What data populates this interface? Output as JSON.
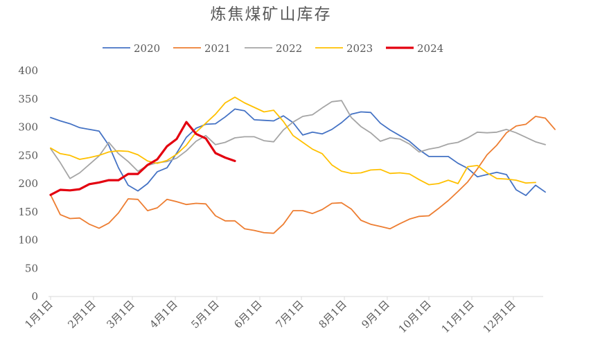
{
  "chart_data": {
    "type": "line",
    "title": "炼焦煤矿山库存",
    "xlabel": "",
    "ylabel": "",
    "ylim": [
      0,
      400
    ],
    "yticks": [
      0,
      50,
      100,
      150,
      200,
      250,
      300,
      350,
      400
    ],
    "x_ticks": [
      "1月1日",
      "2月1日",
      "3月1日",
      "4月1日",
      "5月1日",
      "6月1日",
      "7月1日",
      "8月1日",
      "9月1日",
      "10月1日",
      "11月1日",
      "12月1日"
    ],
    "x_tick_weeks": [
      0,
      4.43,
      8.43,
      12.86,
      17.14,
      21.57,
      25.86,
      30.29,
      34.71,
      39,
      43.43,
      47.71
    ],
    "x_range_weeks": [
      0,
      51
    ],
    "grid": false,
    "legend_position": "top",
    "series": [
      {
        "name": "2020",
        "color": "#4472C4",
        "width": 1.8,
        "start_week": 0,
        "values": [
          317,
          311,
          306,
          299,
          296,
          293,
          268,
          228,
          197,
          187,
          200,
          221,
          228,
          254,
          282,
          298,
          305,
          306,
          318,
          332,
          329,
          313,
          312,
          311,
          320,
          308,
          286,
          291,
          288,
          296,
          308,
          323,
          327,
          326,
          307,
          295,
          285,
          275,
          260,
          248,
          248,
          248,
          236,
          227,
          212,
          216,
          220,
          216,
          189,
          179,
          197,
          185
        ]
      },
      {
        "name": "2021",
        "color": "#ED7D31",
        "width": 1.8,
        "start_week": 0,
        "values": [
          180,
          145,
          138,
          139,
          128,
          121,
          130,
          148,
          173,
          172,
          152,
          157,
          172,
          168,
          163,
          165,
          164,
          143,
          134,
          134,
          120,
          117,
          113,
          112,
          128,
          152,
          152,
          147,
          154,
          165,
          166,
          155,
          135,
          128,
          124,
          120,
          129,
          137,
          142,
          143,
          156,
          170,
          186,
          203,
          226,
          251,
          268,
          290,
          302,
          305,
          319,
          316,
          296
        ]
      },
      {
        "name": "2022",
        "color": "#A5A5A5",
        "width": 1.8,
        "start_week": 0,
        "values": [
          262,
          237,
          209,
          219,
          234,
          249,
          273,
          253,
          239,
          222,
          232,
          237,
          239,
          245,
          258,
          275,
          285,
          269,
          273,
          281,
          283,
          283,
          276,
          274,
          295,
          309,
          319,
          322,
          334,
          345,
          347,
          317,
          301,
          290,
          275,
          281,
          279,
          270,
          256,
          261,
          264,
          270,
          273,
          281,
          291,
          290,
          291,
          296,
          290,
          282,
          274,
          269
        ]
      },
      {
        "name": "2023",
        "color": "#FFC000",
        "width": 1.8,
        "start_week": 0,
        "values": [
          263,
          253,
          250,
          243,
          246,
          250,
          256,
          258,
          257,
          251,
          240,
          236,
          241,
          252,
          268,
          291,
          307,
          323,
          343,
          353,
          343,
          335,
          327,
          330,
          310,
          285,
          273,
          261,
          253,
          233,
          222,
          218,
          219,
          224,
          225,
          218,
          219,
          217,
          207,
          198,
          200,
          206,
          200,
          230,
          232,
          219,
          209,
          208,
          206,
          201,
          202
        ]
      },
      {
        "name": "2024",
        "color": "#E3000F",
        "width": 3.2,
        "start_week": 0,
        "values": [
          180,
          189,
          188,
          190,
          199,
          202,
          206,
          206,
          217,
          217,
          233,
          243,
          266,
          279,
          309,
          288,
          280,
          254,
          246,
          240
        ]
      }
    ]
  }
}
